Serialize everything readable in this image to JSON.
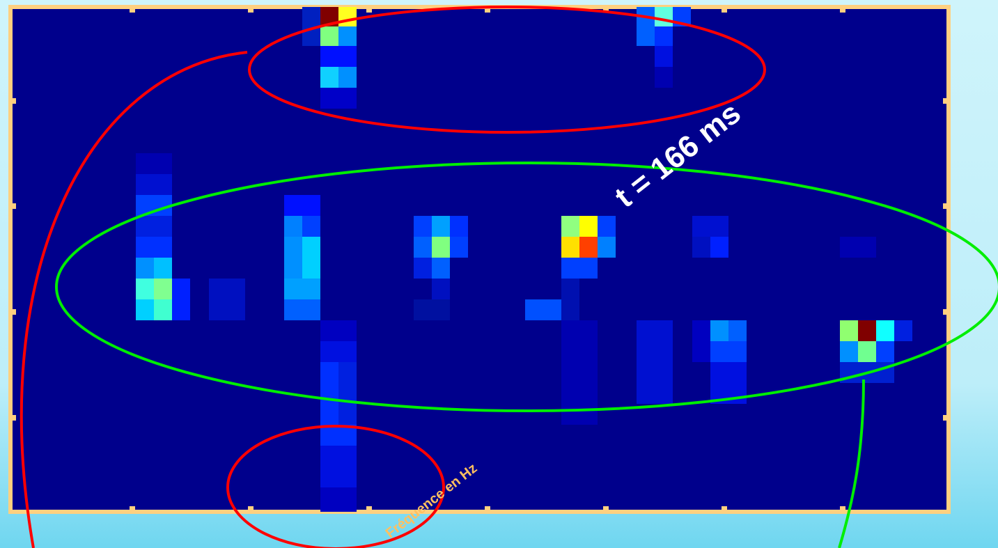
{
  "annotation": {
    "time": "t = 166 ms"
  },
  "axis": {
    "x_label": "Fréquence en Hz"
  }
}
